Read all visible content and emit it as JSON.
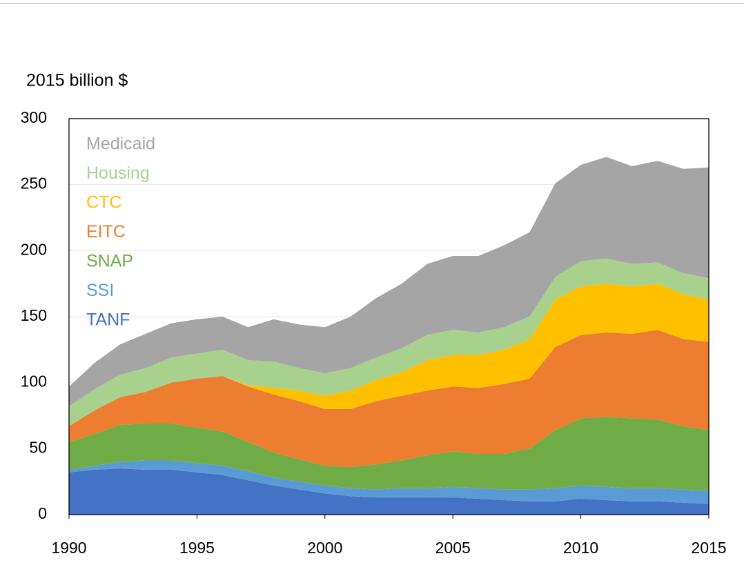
{
  "chart_data": {
    "type": "area",
    "stacked": true,
    "ylabel": "2015 billion $",
    "x": [
      1990,
      1991,
      1992,
      1993,
      1994,
      1995,
      1996,
      1997,
      1998,
      1999,
      2000,
      2001,
      2002,
      2003,
      2004,
      2005,
      2006,
      2007,
      2008,
      2009,
      2010,
      2011,
      2012,
      2013,
      2014,
      2015
    ],
    "series": [
      {
        "name": "TANF",
        "color": "#4472c4",
        "values": [
          32,
          34,
          35,
          34,
          34,
          32,
          30,
          26,
          22,
          19,
          16,
          14,
          13,
          13,
          13,
          13,
          12,
          11,
          10,
          10,
          12,
          11,
          10,
          10,
          9,
          8
        ]
      },
      {
        "name": "SSI",
        "color": "#5b9bd5",
        "values": [
          2,
          3,
          5,
          7,
          7,
          7,
          7,
          7,
          6,
          6,
          6,
          6,
          6,
          7,
          7,
          8,
          8,
          8,
          9,
          10,
          10,
          10,
          10,
          10,
          10,
          10
        ]
      },
      {
        "name": "SNAP",
        "color": "#70ad47",
        "values": [
          21,
          24,
          28,
          28,
          28,
          27,
          26,
          22,
          19,
          17,
          15,
          16,
          19,
          21,
          25,
          27,
          26,
          27,
          31,
          44,
          51,
          53,
          53,
          52,
          48,
          46
        ]
      },
      {
        "name": "EITC",
        "color": "#ed7d31",
        "values": [
          12,
          18,
          21,
          24,
          31,
          37,
          42,
          42,
          44,
          44,
          43,
          44,
          48,
          49,
          49,
          49,
          50,
          53,
          53,
          63,
          63,
          64,
          64,
          68,
          66,
          67
        ]
      },
      {
        "name": "CTC",
        "color": "#ffc000",
        "values": [
          0,
          0,
          0,
          0,
          0,
          0,
          0,
          1,
          5,
          8,
          10,
          14,
          16,
          18,
          23,
          24,
          25,
          26,
          30,
          36,
          37,
          37,
          36,
          35,
          34,
          32
        ]
      },
      {
        "name": "Housing",
        "color": "#a9d18e",
        "values": [
          15,
          16,
          17,
          18,
          19,
          19,
          20,
          19,
          20,
          17,
          17,
          17,
          17,
          18,
          19,
          19,
          17,
          17,
          17,
          17,
          19,
          19,
          17,
          16,
          16,
          16
        ]
      },
      {
        "name": "Medicaid",
        "color": "#a5a5a5",
        "values": [
          15,
          20,
          23,
          26,
          26,
          26,
          25,
          25,
          32,
          33,
          35,
          39,
          45,
          49,
          54,
          56,
          58,
          62,
          64,
          71,
          73,
          77,
          74,
          77,
          79,
          84
        ]
      }
    ],
    "xlim": [
      1990,
      2015
    ],
    "xticks": [
      1990,
      1995,
      2000,
      2005,
      2010,
      2015
    ],
    "ylim": [
      0,
      300
    ],
    "yticks": [
      0,
      50,
      100,
      150,
      200,
      250,
      300
    ],
    "grid": true,
    "legend": "upper left"
  }
}
